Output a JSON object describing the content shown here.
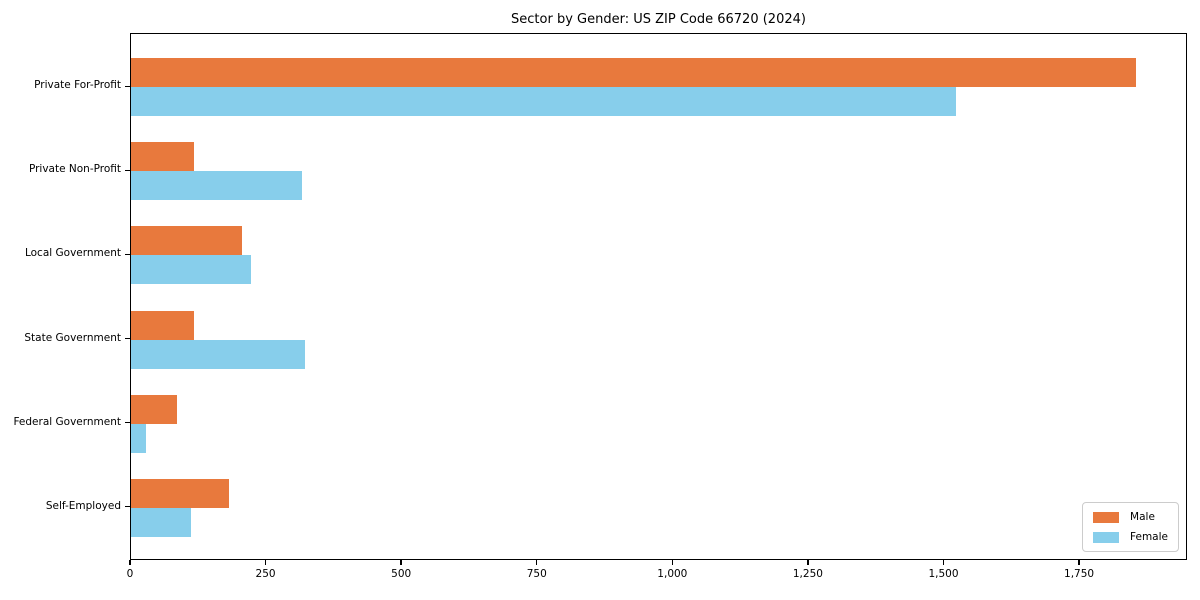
{
  "chart_data": {
    "type": "bar",
    "orientation": "horizontal",
    "title": "Sector by Gender: US ZIP Code 66720 (2024)",
    "categories": [
      "Private For-Profit",
      "Private Non-Profit",
      "Local Government",
      "State Government",
      "Federal Government",
      "Self-Employed"
    ],
    "series": [
      {
        "name": "Male",
        "color": "#e8793d",
        "values": [
          1856,
          117,
          205,
          117,
          85,
          181
        ]
      },
      {
        "name": "Female",
        "color": "#87ceeb",
        "values": [
          1524,
          316,
          221,
          322,
          28,
          110
        ]
      }
    ],
    "xlabel": "",
    "ylabel": "",
    "xlim": [
      0,
      1949
    ],
    "x_ticks": [
      0,
      250,
      500,
      750,
      1000,
      1250,
      1500,
      1750
    ],
    "x_tick_labels": [
      "0",
      "250",
      "500",
      "750",
      "1,000",
      "1,250",
      "1,500",
      "1,750"
    ],
    "grid": false,
    "legend": {
      "position": "lower right",
      "entries": [
        "Male",
        "Female"
      ]
    },
    "colors": {
      "male": "#e8793d",
      "female": "#87ceeb",
      "spine": "#000000",
      "legend_border": "#cccccc",
      "background": "#ffffff"
    }
  }
}
